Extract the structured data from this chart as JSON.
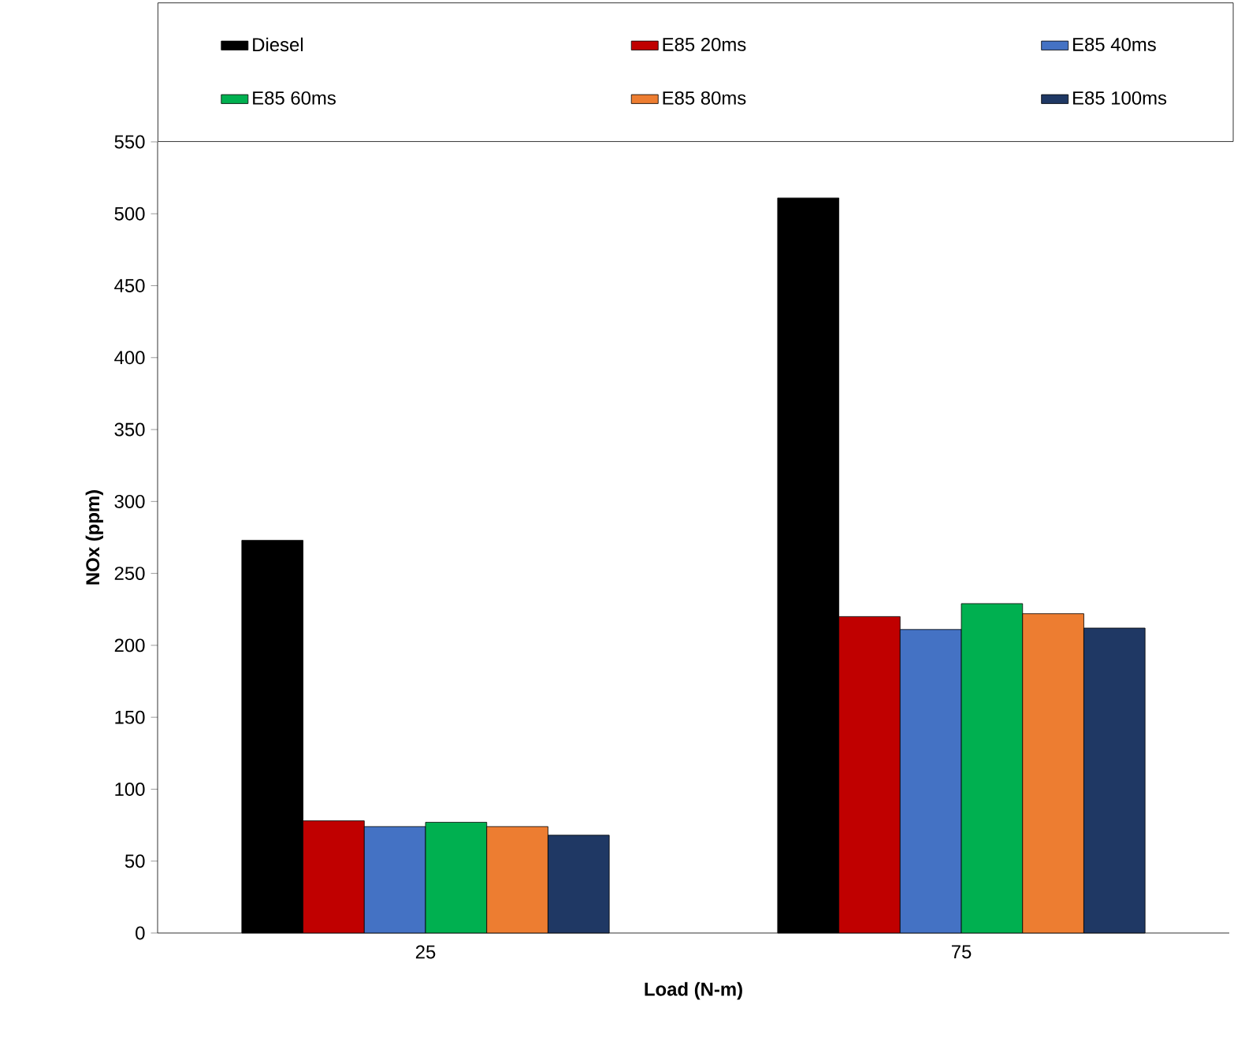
{
  "chart_data": {
    "type": "bar",
    "xlabel": "Load (N-m)",
    "ylabel": "NOx (ppm)",
    "categories": [
      "25",
      "75"
    ],
    "series": [
      {
        "name": "Diesel",
        "color": "#000000",
        "values": [
          273,
          511
        ]
      },
      {
        "name": "E85 20ms",
        "color": "#c00000",
        "values": [
          78,
          220
        ]
      },
      {
        "name": "E85 40ms",
        "color": "#4472c4",
        "values": [
          74,
          211
        ]
      },
      {
        "name": "E85 60ms",
        "color": "#00b050",
        "values": [
          77,
          229
        ]
      },
      {
        "name": "E85 80ms",
        "color": "#ed7d31",
        "values": [
          74,
          222
        ]
      },
      {
        "name": "E85 100ms",
        "color": "#1f3864",
        "values": [
          68,
          212
        ]
      }
    ],
    "ylim": [
      0,
      550
    ],
    "yticks": [
      0,
      50,
      100,
      150,
      200,
      250,
      300,
      350,
      400,
      450,
      500,
      550
    ],
    "legend": "top",
    "grid": false
  }
}
